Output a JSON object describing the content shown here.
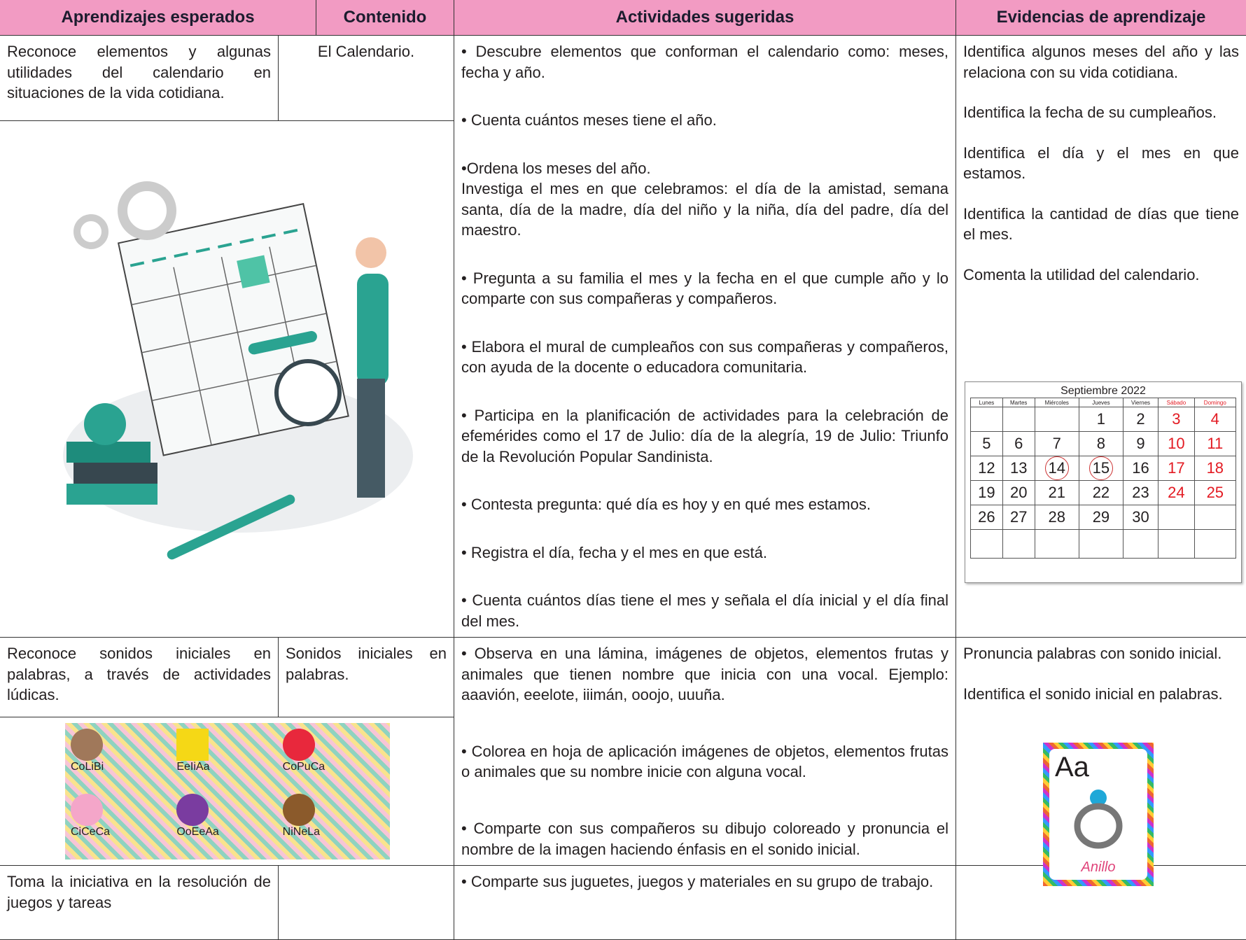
{
  "header": [
    "Aprendizajes esperados",
    "Contenido",
    "Actividades sugeridas",
    "Evidencias de aprendizaje"
  ],
  "rows": [
    {
      "aprendizaje": "Reconoce elementos y algunas utilidades del calendario en situaciones de la vida cotidiana.",
      "contenido": "El Calendario.",
      "actividades": [
        [
          "• Descubre elementos que conforman el calendario como: meses, fecha y año."
        ],
        [
          "• Cuenta cuántos meses tiene el año."
        ],
        [
          "•Ordena los meses del año.",
          "Investiga el mes en que celebramos: el día de la amistad, semana santa, día de la madre, día del niño y la niña, día del padre, día del maestro."
        ],
        [
          "• Pregunta a su familia el mes y la fecha en el que cumple año y lo comparte con sus compañeras y compañeros."
        ],
        [
          "• Elabora el mural de cumpleaños con sus compañeras y compañeros, con ayuda de la docente o educadora comunitaria."
        ],
        [
          "• Participa en la planificación de actividades para la celebración de efemérides como el 17 de Julio: día de la alegría, 19 de Julio: Triunfo de la Revolución Popular Sandinista."
        ],
        [
          "• Contesta pregunta: qué día es hoy y en qué mes estamos."
        ],
        [
          "• Registra el día, fecha y el mes en que está."
        ],
        [
          "• Cuenta cuántos días tiene el mes y señala el día inicial y el día final del mes."
        ]
      ],
      "evidencias": [
        "Identifica algunos meses del año y las relaciona con su vida cotidiana.",
        "Identifica la fecha de su cumpleaños.",
        "Identifica el día y el mes en que estamos.",
        "Identifica la cantidad de días que tiene el mes.",
        "Comenta la utilidad del calendario."
      ]
    },
    {
      "aprendizaje": "Reconoce sonidos iniciales en palabras, a través de actividades lúdicas.",
      "contenido": "Sonidos iniciales en palabras.",
      "actividades": [
        [
          "• Observa en una lámina, imágenes de objetos, elementos frutas y animales que tienen nombre que inicia con una vocal. Ejemplo: aaavión, eeelote, iiimán, ooojo, uuuña."
        ],
        [
          "• Colorea en hoja de aplicación imágenes de objetos, elementos frutas o animales que su nombre inicie con alguna vocal."
        ],
        [
          "• Comparte con sus compañeros su dibujo coloreado y pronuncia el nombre de la imagen haciendo énfasis en el sonido inicial."
        ]
      ],
      "evidencias": [
        "Pronuncia palabras con sonido inicial.",
        "Identifica el sonido inicial en palabras."
      ]
    },
    {
      "aprendizaje": "Toma la iniciativa en la resolución de juegos y tareas",
      "actividades": [
        [
          "• Comparte sus juguetes, juegos y materiales en su grupo de trabajo."
        ]
      ]
    }
  ],
  "calendar": {
    "title": "Septiembre 2022",
    "weekdays": [
      "Lunes",
      "Martes",
      "Miércoles",
      "Jueves",
      "Viernes",
      "Sábado",
      "Domingo"
    ],
    "weeks": [
      [
        null,
        null,
        null,
        1,
        2,
        3,
        4
      ],
      [
        5,
        6,
        7,
        8,
        9,
        10,
        11
      ],
      [
        12,
        13,
        14,
        15,
        16,
        17,
        18
      ],
      [
        19,
        20,
        21,
        22,
        23,
        24,
        25
      ],
      [
        26,
        27,
        28,
        29,
        30,
        null,
        null
      ]
    ]
  },
  "letter_cards": [
    [
      "Co",
      "Li",
      "Bi"
    ],
    [
      "Ee",
      "Ii",
      "Aa"
    ],
    [
      "Co",
      "Pu",
      "Ca"
    ],
    [
      "Ci",
      "Ce",
      "Ca"
    ],
    [
      "Oo",
      "Ee",
      "Aa"
    ],
    [
      "Ni",
      "Ne",
      "La"
    ]
  ],
  "vowel_card": {
    "letter": "Aa",
    "word": "Anillo"
  }
}
